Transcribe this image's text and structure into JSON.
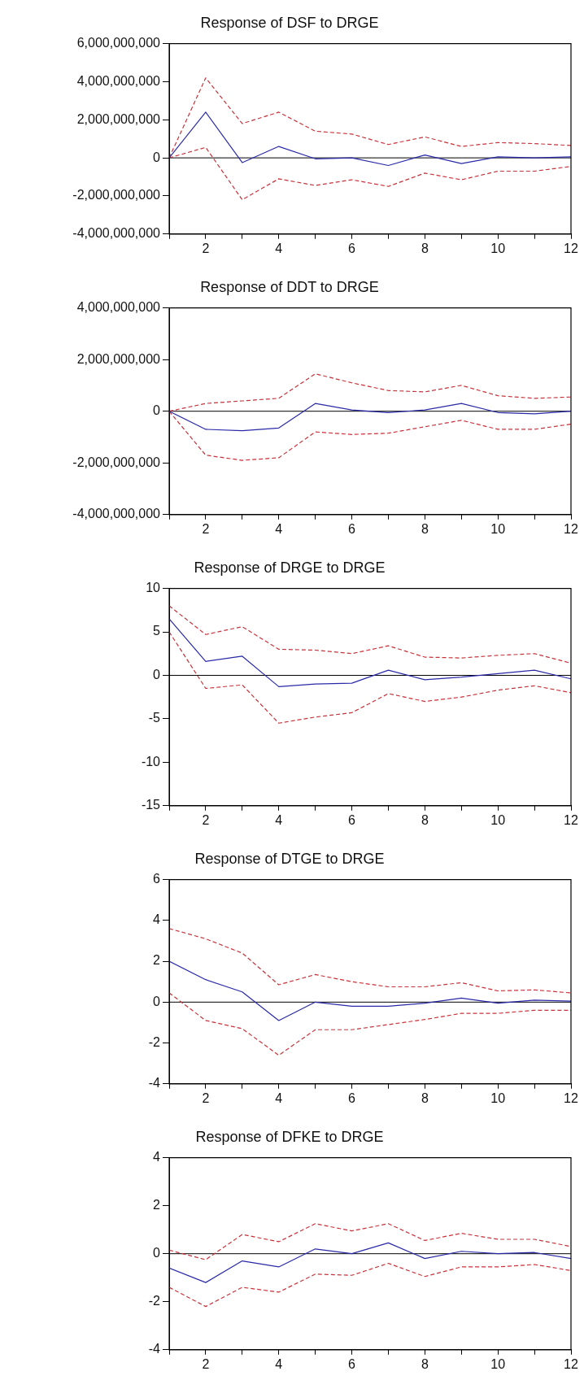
{
  "chart_data": [
    {
      "type": "line",
      "title": "Response of DSF to DRGE",
      "x": [
        1,
        2,
        3,
        4,
        5,
        6,
        7,
        8,
        9,
        10,
        11,
        12
      ],
      "xlim": [
        1,
        12
      ],
      "xticks": [
        {
          "value": 1,
          "label": null
        },
        2,
        {
          "value": 3,
          "label": null
        },
        4,
        {
          "value": 5,
          "label": null
        },
        6,
        {
          "value": 7,
          "label": null
        },
        8,
        {
          "value": 9,
          "label": null
        },
        10,
        {
          "value": 11,
          "label": null
        },
        12
      ],
      "ylim": [
        -4000000000,
        6000000000
      ],
      "yticks": [
        {
          "value": -4000000000,
          "label": "-4,000,000,000"
        },
        {
          "value": -2000000000,
          "label": "-2,000,000,000"
        },
        0,
        {
          "value": 2000000000,
          "label": "2,000,000,000"
        },
        {
          "value": 4000000000,
          "label": "4,000,000,000"
        },
        {
          "value": 6000000000,
          "label": "6,000,000,000"
        }
      ],
      "grid": false,
      "legend": false,
      "marker": "none",
      "ref_lines": [
        {
          "axis": "y",
          "value": 0,
          "color": "#000000",
          "line_style": "solid"
        }
      ],
      "series": [
        {
          "color": "#2a2aa8",
          "line_style": "solid",
          "values": [
            0,
            2400000000,
            -250000000,
            600000000,
            -50000000,
            0,
            -400000000,
            150000000,
            -300000000,
            50000000,
            0,
            50000000
          ]
        },
        {
          "color": "#c8323a",
          "line_style": "dashed",
          "values": [
            0,
            4200000000,
            1800000000,
            2400000000,
            1400000000,
            1250000000,
            700000000,
            1100000000,
            600000000,
            800000000,
            750000000,
            650000000
          ]
        },
        {
          "color": "#c8323a",
          "line_style": "dashed",
          "values": [
            0,
            550000000,
            -2200000000,
            -1100000000,
            -1450000000,
            -1150000000,
            -1500000000,
            -800000000,
            -1150000000,
            -700000000,
            -700000000,
            -450000000
          ]
        }
      ]
    },
    {
      "type": "line",
      "title": "Response of DDT to DRGE",
      "x": [
        1,
        2,
        3,
        4,
        5,
        6,
        7,
        8,
        9,
        10,
        11,
        12
      ],
      "xlim": [
        1,
        12
      ],
      "xticks": [
        {
          "value": 1,
          "label": null
        },
        2,
        {
          "value": 3,
          "label": null
        },
        4,
        {
          "value": 5,
          "label": null
        },
        6,
        {
          "value": 7,
          "label": null
        },
        8,
        {
          "value": 9,
          "label": null
        },
        10,
        {
          "value": 11,
          "label": null
        },
        12
      ],
      "ylim": [
        -4000000000,
        4000000000
      ],
      "yticks": [
        {
          "value": -4000000000,
          "label": "-4,000,000,000"
        },
        {
          "value": -2000000000,
          "label": "-2,000,000,000"
        },
        0,
        {
          "value": 2000000000,
          "label": "2,000,000,000"
        },
        {
          "value": 4000000000,
          "label": "4,000,000,000"
        }
      ],
      "grid": false,
      "legend": false,
      "marker": "none",
      "ref_lines": [
        {
          "axis": "y",
          "value": 0,
          "color": "#000000",
          "line_style": "solid"
        }
      ],
      "series": [
        {
          "color": "#2a2aa8",
          "line_style": "solid",
          "values": [
            0,
            -700000000,
            -750000000,
            -650000000,
            300000000,
            50000000,
            -50000000,
            50000000,
            300000000,
            -50000000,
            -100000000,
            0
          ]
        },
        {
          "color": "#c8323a",
          "line_style": "dashed",
          "values": [
            0,
            300000000,
            400000000,
            500000000,
            1450000000,
            1100000000,
            800000000,
            750000000,
            1000000000,
            600000000,
            500000000,
            550000000
          ]
        },
        {
          "color": "#c8323a",
          "line_style": "dashed",
          "values": [
            0,
            -1700000000,
            -1900000000,
            -1800000000,
            -800000000,
            -900000000,
            -850000000,
            -600000000,
            -350000000,
            -700000000,
            -700000000,
            -500000000
          ]
        }
      ]
    },
    {
      "type": "line",
      "title": "Response of DRGE to DRGE",
      "x": [
        1,
        2,
        3,
        4,
        5,
        6,
        7,
        8,
        9,
        10,
        11,
        12
      ],
      "xlim": [
        1,
        12
      ],
      "xticks": [
        {
          "value": 1,
          "label": null
        },
        2,
        {
          "value": 3,
          "label": null
        },
        4,
        {
          "value": 5,
          "label": null
        },
        6,
        {
          "value": 7,
          "label": null
        },
        8,
        {
          "value": 9,
          "label": null
        },
        10,
        {
          "value": 11,
          "label": null
        },
        12
      ],
      "ylim": [
        -15,
        10
      ],
      "yticks": [
        -15,
        -10,
        -5,
        0,
        5,
        10
      ],
      "grid": false,
      "legend": false,
      "marker": "none",
      "ref_lines": [
        {
          "axis": "y",
          "value": 0,
          "color": "#000000",
          "line_style": "solid"
        }
      ],
      "series": [
        {
          "color": "#2a2aa8",
          "line_style": "solid",
          "values": [
            6.5,
            1.6,
            2.2,
            -1.3,
            -1.0,
            -0.9,
            0.6,
            -0.5,
            -0.2,
            0.2,
            0.6,
            -0.4
          ]
        },
        {
          "color": "#c8323a",
          "line_style": "dashed",
          "values": [
            8.0,
            4.7,
            5.6,
            3.0,
            2.9,
            2.5,
            3.4,
            2.1,
            2.0,
            2.3,
            2.5,
            1.4
          ]
        },
        {
          "color": "#c8323a",
          "line_style": "dashed",
          "values": [
            5.0,
            -1.5,
            -1.1,
            -5.5,
            -4.8,
            -4.3,
            -2.1,
            -3.0,
            -2.5,
            -1.7,
            -1.2,
            -2.0
          ]
        }
      ]
    },
    {
      "type": "line",
      "title": "Response of DTGE to DRGE",
      "x": [
        1,
        2,
        3,
        4,
        5,
        6,
        7,
        8,
        9,
        10,
        11,
        12
      ],
      "xlim": [
        1,
        12
      ],
      "xticks": [
        {
          "value": 1,
          "label": null
        },
        2,
        {
          "value": 3,
          "label": null
        },
        4,
        {
          "value": 5,
          "label": null
        },
        6,
        {
          "value": 7,
          "label": null
        },
        8,
        {
          "value": 9,
          "label": null
        },
        10,
        {
          "value": 11,
          "label": null
        },
        12
      ],
      "ylim": [
        -4,
        6
      ],
      "yticks": [
        -4,
        -2,
        0,
        2,
        4,
        6
      ],
      "grid": false,
      "legend": false,
      "marker": "none",
      "ref_lines": [
        {
          "axis": "y",
          "value": 0,
          "color": "#000000",
          "line_style": "solid"
        }
      ],
      "series": [
        {
          "color": "#2a2aa8",
          "line_style": "solid",
          "values": [
            2.0,
            1.1,
            0.5,
            -0.9,
            0.0,
            -0.2,
            -0.2,
            -0.05,
            0.2,
            -0.05,
            0.1,
            0.05
          ]
        },
        {
          "color": "#c8323a",
          "line_style": "dashed",
          "values": [
            3.6,
            3.1,
            2.4,
            0.85,
            1.35,
            1.0,
            0.75,
            0.75,
            0.95,
            0.55,
            0.6,
            0.45
          ]
        },
        {
          "color": "#c8323a",
          "line_style": "dashed",
          "values": [
            0.45,
            -0.9,
            -1.3,
            -2.6,
            -1.35,
            -1.35,
            -1.1,
            -0.85,
            -0.55,
            -0.55,
            -0.4,
            -0.4
          ]
        }
      ]
    },
    {
      "type": "line",
      "title": "Response of DFKE to DRGE",
      "x": [
        1,
        2,
        3,
        4,
        5,
        6,
        7,
        8,
        9,
        10,
        11,
        12
      ],
      "xlim": [
        1,
        12
      ],
      "xticks": [
        {
          "value": 1,
          "label": null
        },
        2,
        {
          "value": 3,
          "label": null
        },
        4,
        {
          "value": 5,
          "label": null
        },
        6,
        {
          "value": 7,
          "label": null
        },
        8,
        {
          "value": 9,
          "label": null
        },
        10,
        {
          "value": 11,
          "label": null
        },
        12
      ],
      "ylim": [
        -4,
        4
      ],
      "yticks": [
        -4,
        -2,
        0,
        2,
        4
      ],
      "grid": false,
      "legend": false,
      "marker": "none",
      "ref_lines": [
        {
          "axis": "y",
          "value": 0,
          "color": "#000000",
          "line_style": "solid"
        }
      ],
      "series": [
        {
          "color": "#2a2aa8",
          "line_style": "solid",
          "values": [
            -0.6,
            -1.2,
            -0.3,
            -0.55,
            0.2,
            0.0,
            0.45,
            -0.2,
            0.1,
            0.0,
            0.05,
            -0.2
          ]
        },
        {
          "color": "#c8323a",
          "line_style": "dashed",
          "values": [
            0.15,
            -0.25,
            0.8,
            0.5,
            1.25,
            0.95,
            1.25,
            0.55,
            0.85,
            0.6,
            0.6,
            0.3
          ]
        },
        {
          "color": "#c8323a",
          "line_style": "dashed",
          "values": [
            -1.4,
            -2.2,
            -1.4,
            -1.6,
            -0.85,
            -0.9,
            -0.4,
            -0.95,
            -0.55,
            -0.55,
            -0.45,
            -0.7
          ]
        }
      ]
    }
  ]
}
